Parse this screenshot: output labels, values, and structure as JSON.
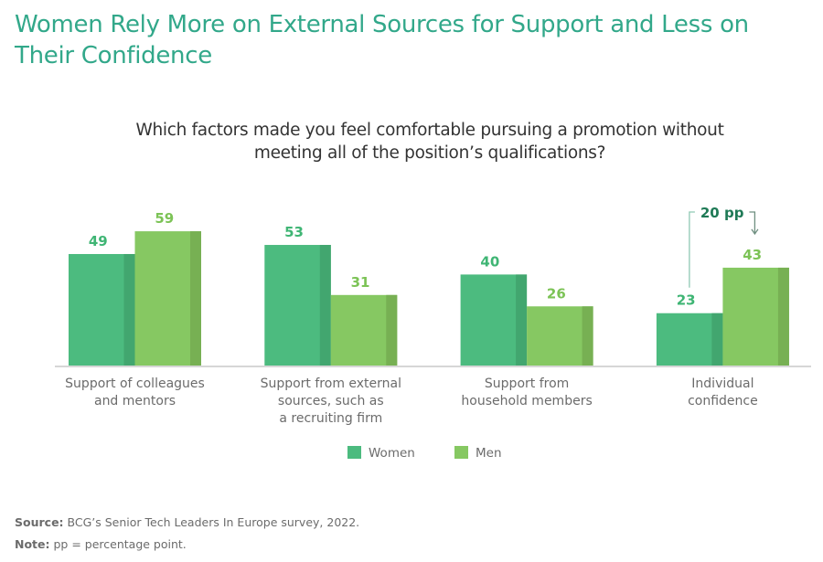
{
  "header": {
    "title": "Women Rely More on External Sources for Support and Less on Their Confidence"
  },
  "chart_data": {
    "type": "bar",
    "title": "Which factors made you feel comfortable pursuing a promotion without meeting all of the position’s qualifications?",
    "xlabel": "",
    "ylabel": "",
    "ylim": [
      0,
      60
    ],
    "grid": false,
    "legend_position": "bottom-center",
    "categories": [
      [
        "Support of colleagues",
        "and mentors"
      ],
      [
        "Support from external",
        "sources, such as",
        "a recruiting firm"
      ],
      [
        "Support from",
        "household members"
      ],
      [
        "Individual",
        "confidence"
      ]
    ],
    "series": [
      {
        "name": "Women",
        "color": "#4cbb7f",
        "shade": "#42a66f",
        "label_color": "#3fb574",
        "values": [
          49,
          53,
          40,
          23
        ]
      },
      {
        "name": "Men",
        "color": "#86c862",
        "shade": "#77b053",
        "label_color": "#7cc356",
        "values": [
          59,
          31,
          26,
          43
        ]
      }
    ],
    "annotations": [
      {
        "text": "20 pp",
        "category_index": 3,
        "from_series": "Women",
        "to_series": "Men"
      }
    ]
  },
  "footer": {
    "source_label": "Source:",
    "source_text": " BCG’s Senior Tech Leaders In Europe survey, 2022.",
    "note_label": "Note:",
    "note_text": " pp = percentage point."
  }
}
